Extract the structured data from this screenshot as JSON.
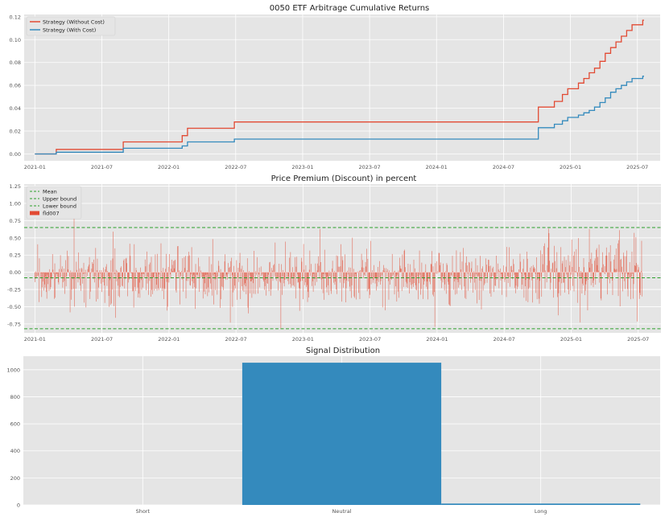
{
  "figure": {
    "background": "#ffffff",
    "plot_background": "#e5e5e5",
    "grid_color": "#ffffff"
  },
  "chart_data": [
    {
      "type": "line",
      "title": "0050 ETF Arbitrage Cumulative Returns",
      "xlabel": "",
      "ylabel": "",
      "xlim": [
        2020.92,
        2025.67
      ],
      "ylim": [
        -0.006,
        0.122
      ],
      "yticks": [
        0.0,
        0.02,
        0.04,
        0.06,
        0.08,
        0.1,
        0.12
      ],
      "ytick_labels": [
        "0.00",
        "0.02",
        "0.04",
        "0.06",
        "0.08",
        "0.10",
        "0.12"
      ],
      "xticks": [
        2021.0,
        2021.5,
        2022.0,
        2022.5,
        2023.0,
        2023.5,
        2024.0,
        2024.5,
        2025.0,
        2025.5
      ],
      "xtick_labels": [
        "2021-01",
        "2021-07",
        "2022-01",
        "2022-07",
        "2023-01",
        "2023-07",
        "2024-01",
        "2024-07",
        "2025-01",
        "2025-07"
      ],
      "legend_position": "top-left",
      "series": [
        {
          "name": "Strategy (Without Cost)",
          "color": "#e24a33",
          "x": [
            2021.0,
            2021.16,
            2021.66,
            2022.1,
            2022.14,
            2022.49,
            2024.76,
            2024.88,
            2024.94,
            2024.98,
            2025.06,
            2025.1,
            2025.14,
            2025.18,
            2025.22,
            2025.26,
            2025.3,
            2025.34,
            2025.38,
            2025.42,
            2025.46,
            2025.54
          ],
          "y": [
            0.0,
            0.004,
            0.0105,
            0.016,
            0.0225,
            0.028,
            0.041,
            0.046,
            0.052,
            0.057,
            0.062,
            0.066,
            0.071,
            0.075,
            0.081,
            0.088,
            0.093,
            0.098,
            0.103,
            0.108,
            0.113,
            0.117
          ]
        },
        {
          "name": "Strategy (With Cost)",
          "color": "#348abd",
          "x": [
            2021.0,
            2021.16,
            2021.66,
            2022.1,
            2022.14,
            2022.49,
            2024.76,
            2024.88,
            2024.94,
            2024.98,
            2025.06,
            2025.1,
            2025.14,
            2025.18,
            2025.22,
            2025.26,
            2025.3,
            2025.34,
            2025.38,
            2025.42,
            2025.46,
            2025.54
          ],
          "y": [
            0.0,
            0.0015,
            0.005,
            0.007,
            0.0105,
            0.013,
            0.023,
            0.026,
            0.029,
            0.032,
            0.034,
            0.036,
            0.038,
            0.041,
            0.045,
            0.049,
            0.054,
            0.057,
            0.06,
            0.063,
            0.066,
            0.068
          ]
        }
      ]
    },
    {
      "type": "bar",
      "title": "Price Premium (Discount) in percent",
      "xlabel": "",
      "ylabel": "",
      "xlim": [
        2020.92,
        2025.67
      ],
      "ylim": [
        -0.88,
        1.28
      ],
      "yticks": [
        -0.75,
        -0.5,
        -0.25,
        0.0,
        0.25,
        0.5,
        0.75,
        1.0,
        1.25
      ],
      "ytick_labels": [
        "-0.75",
        "-0.50",
        "-0.25",
        "0.00",
        "0.25",
        "0.50",
        "0.75",
        "1.00",
        "1.25"
      ],
      "xticks": [
        2021.0,
        2021.5,
        2022.0,
        2022.5,
        2023.0,
        2023.5,
        2024.0,
        2024.5,
        2025.0,
        2025.5
      ],
      "xtick_labels": [
        "2021-01",
        "2021-07",
        "2022-01",
        "2022-07",
        "2023-01",
        "2023-07",
        "2024-01",
        "2024-07",
        "2025-01",
        "2025-07"
      ],
      "legend_position": "top-left",
      "bar_series": {
        "name": "fld007",
        "color": "#e24a33",
        "x_start": 2021.0,
        "x_end": 2025.53,
        "count": 1070,
        "mean": -0.08,
        "std": 0.24,
        "seed": 7
      },
      "hlines": [
        {
          "name": "Mean",
          "value": -0.08,
          "color": "#2ca02c",
          "style": "dashed"
        },
        {
          "name": "Upper bound",
          "value": 0.65,
          "color": "#2ca02c",
          "style": "dashed"
        },
        {
          "name": "Lower bound",
          "value": -0.82,
          "color": "#2ca02c",
          "style": "dashed"
        }
      ]
    },
    {
      "type": "bar",
      "title": "Signal Distribution",
      "xlabel": "",
      "ylabel": "",
      "categories": [
        "Short",
        "Neutral",
        "Long"
      ],
      "values": [
        0,
        1052,
        10
      ],
      "color": "#348abd",
      "ylim": [
        0,
        1100
      ],
      "yticks": [
        0,
        200,
        400,
        600,
        800,
        1000
      ],
      "ytick_labels": [
        "0",
        "200",
        "400",
        "600",
        "800",
        "1000"
      ]
    }
  ]
}
